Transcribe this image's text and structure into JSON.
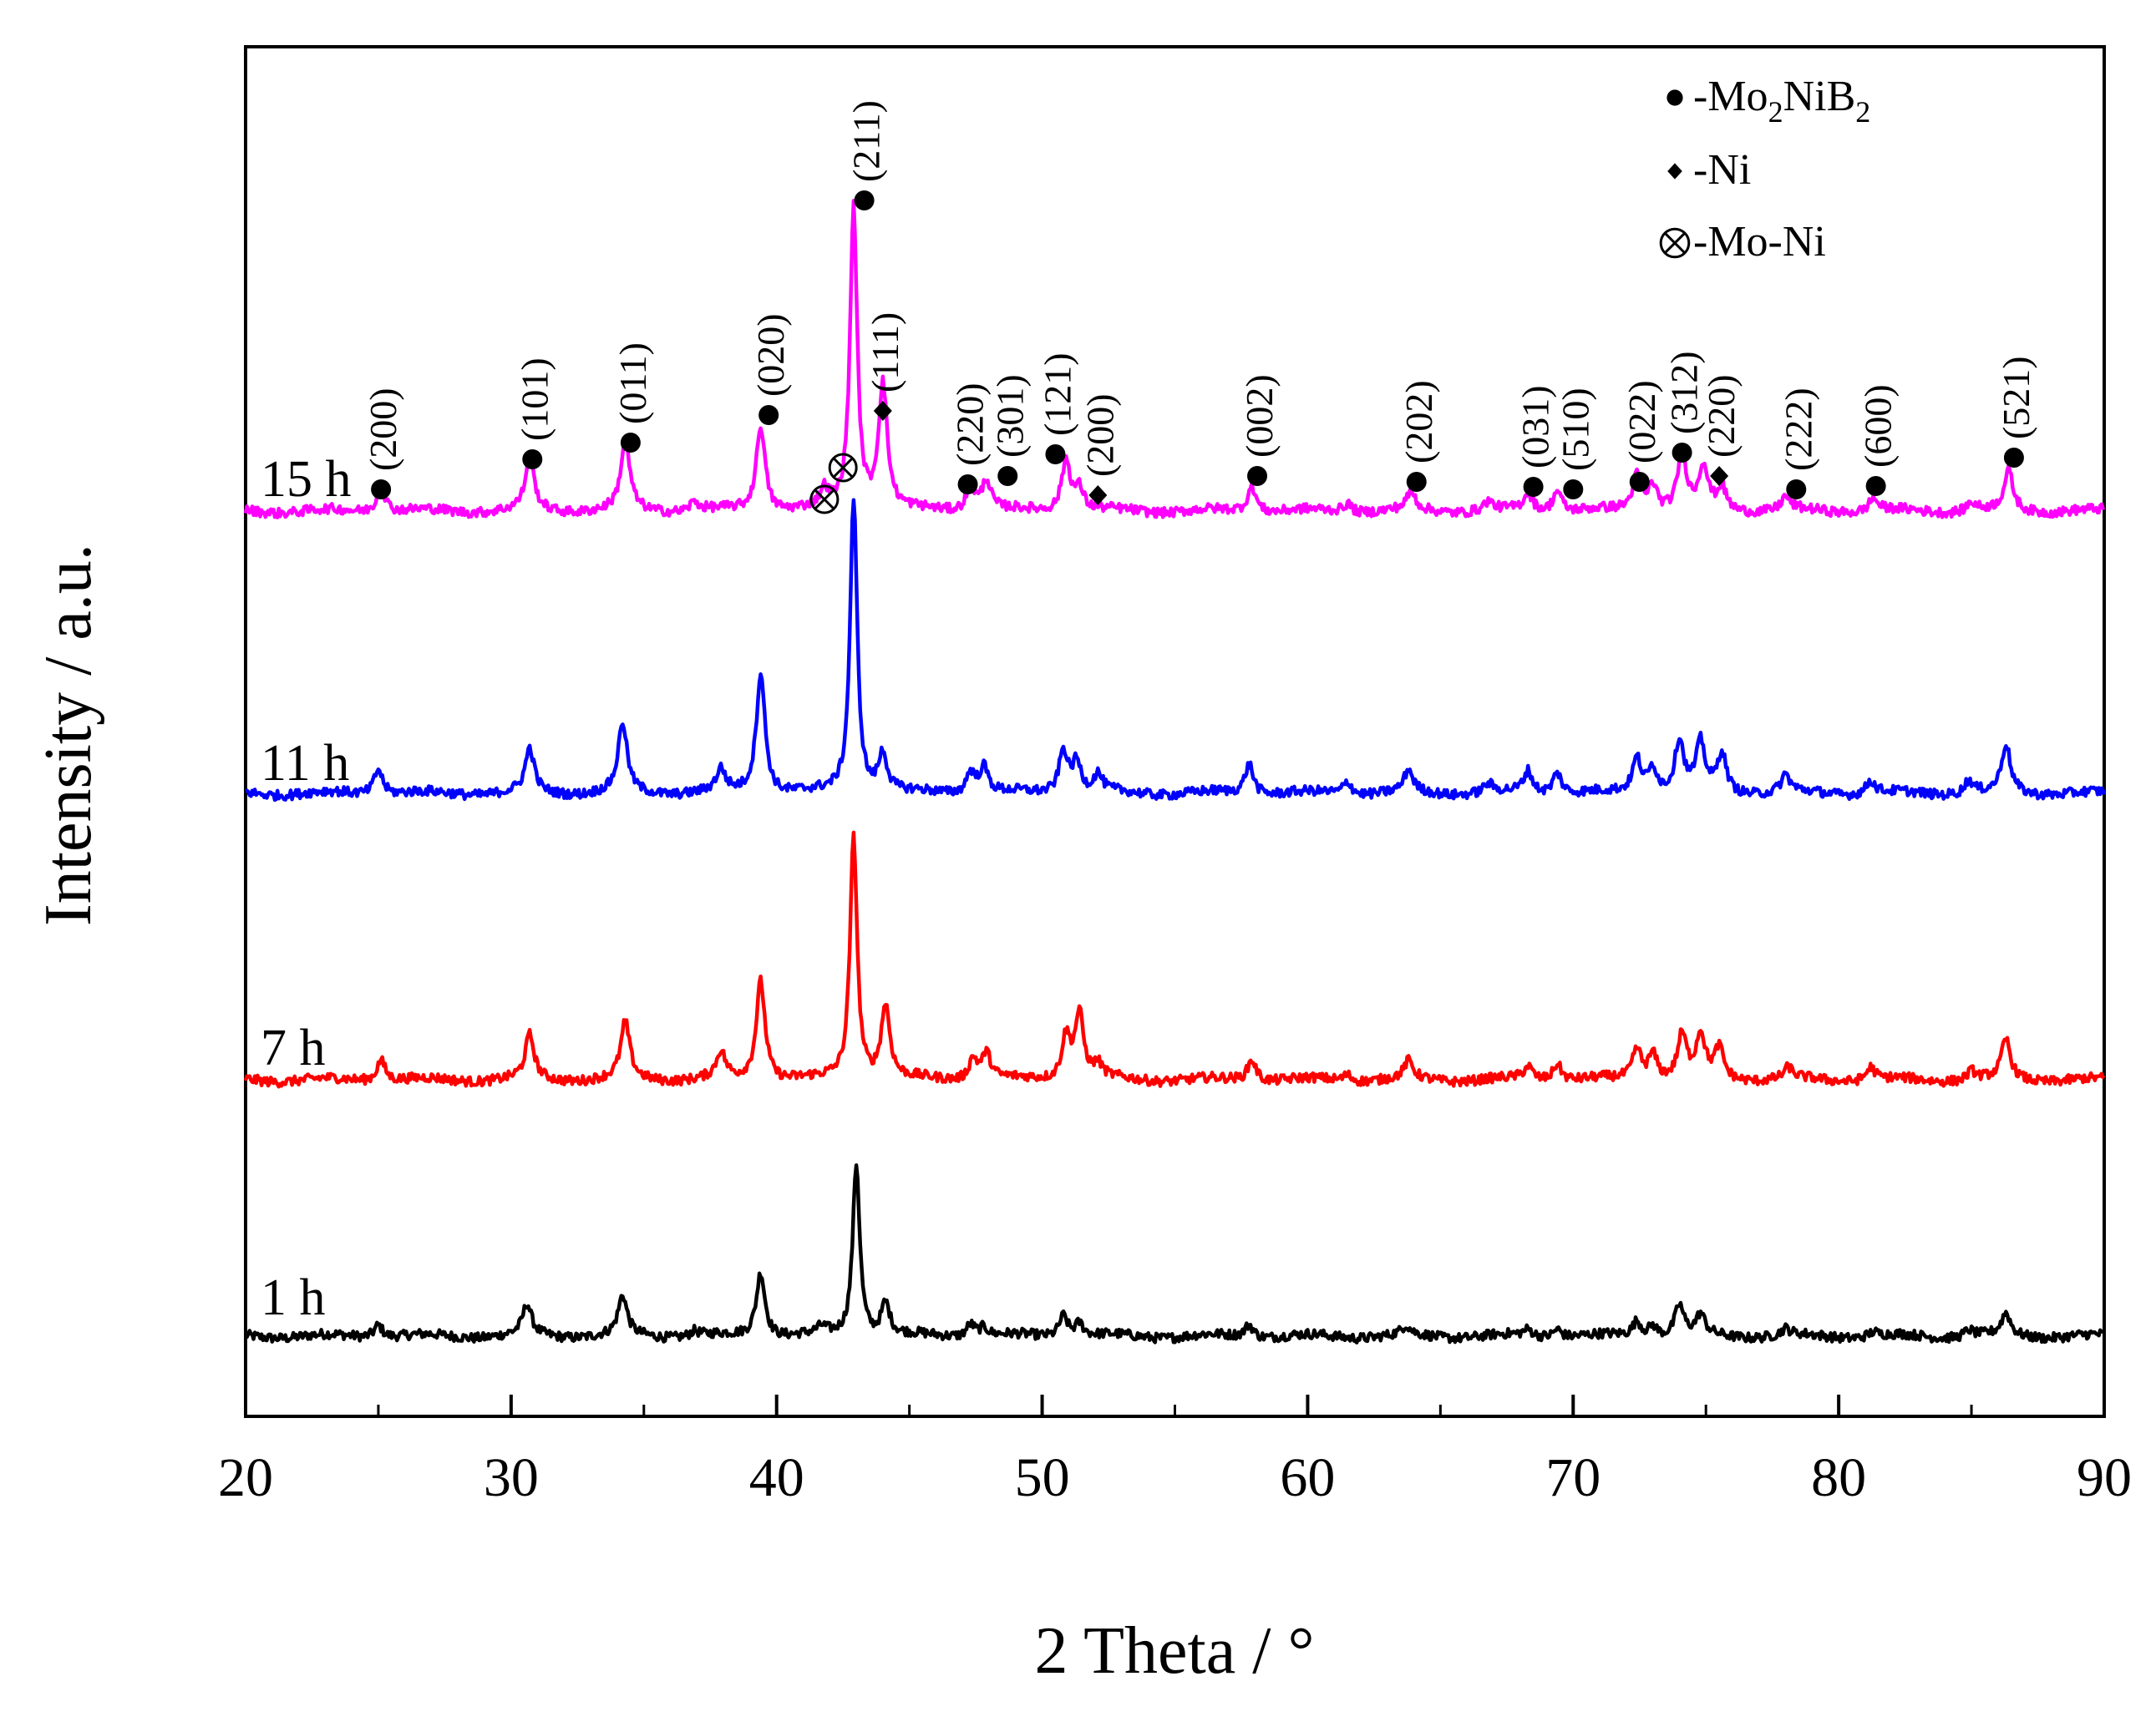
{
  "chart_data": {
    "type": "line",
    "title": "",
    "xlabel": "2 Theta / °",
    "ylabel": "Intensity / a.u.",
    "xlim": [
      20,
      90
    ],
    "xticks": [
      20,
      30,
      40,
      50,
      60,
      70,
      80,
      90
    ],
    "yticks_shown": false,
    "series": [
      {
        "name": "1 h",
        "color": "#000000",
        "baseline": 0.0,
        "peaks": [
          [
            25.0,
            0.3
          ],
          [
            30.6,
            0.7
          ],
          [
            34.2,
            0.9
          ],
          [
            36.9,
            0.12
          ],
          [
            39.4,
            1.5
          ],
          [
            41.7,
            0.15
          ],
          [
            43.0,
            4.0
          ],
          [
            44.1,
            0.75
          ],
          [
            47.3,
            0.3
          ],
          [
            47.8,
            0.2
          ],
          [
            50.8,
            0.5
          ],
          [
            51.4,
            0.3
          ],
          [
            57.8,
            0.3
          ],
          [
            63.7,
            0.2
          ],
          [
            68.3,
            0.15
          ],
          [
            69.4,
            0.2
          ],
          [
            72.4,
            0.35
          ],
          [
            73.0,
            0.25
          ],
          [
            74.0,
            0.7
          ],
          [
            74.8,
            0.45
          ],
          [
            78.0,
            0.15
          ],
          [
            81.3,
            0.1
          ],
          [
            84.9,
            0.15
          ],
          [
            86.3,
            0.5
          ]
        ]
      },
      {
        "name": "7 h",
        "color": "#ff0000",
        "baseline": 5.9,
        "peaks": [
          [
            25.1,
            0.5
          ],
          [
            30.7,
            1.0
          ],
          [
            34.3,
            1.3
          ],
          [
            37.9,
            0.6
          ],
          [
            39.4,
            2.3
          ],
          [
            42.9,
            5.6
          ],
          [
            44.1,
            1.7
          ],
          [
            47.4,
            0.5
          ],
          [
            47.9,
            0.6
          ],
          [
            50.9,
            1.0
          ],
          [
            51.4,
            1.5
          ],
          [
            52.1,
            0.3
          ],
          [
            57.9,
            0.5
          ],
          [
            61.5,
            0.15
          ],
          [
            63.8,
            0.4
          ],
          [
            68.3,
            0.3
          ],
          [
            69.4,
            0.4
          ],
          [
            72.4,
            0.7
          ],
          [
            73.0,
            0.6
          ],
          [
            74.1,
            1.0
          ],
          [
            74.8,
            1.0
          ],
          [
            75.5,
            0.7
          ],
          [
            78.1,
            0.25
          ],
          [
            81.2,
            0.3
          ],
          [
            85.0,
            0.2
          ],
          [
            86.3,
            0.9
          ]
        ]
      },
      {
        "name": "11 h",
        "color": "#0000ff",
        "baseline": 12.5,
        "peaks": [
          [
            25.0,
            0.6
          ],
          [
            30.7,
            1.0
          ],
          [
            34.2,
            1.6
          ],
          [
            37.9,
            0.5
          ],
          [
            39.4,
            2.8
          ],
          [
            42.9,
            6.8
          ],
          [
            44.0,
            0.9
          ],
          [
            47.3,
            0.5
          ],
          [
            47.8,
            0.6
          ],
          [
            50.8,
            1.0
          ],
          [
            51.3,
            0.7
          ],
          [
            52.1,
            0.4
          ],
          [
            57.8,
            0.7
          ],
          [
            61.5,
            0.3
          ],
          [
            63.8,
            0.5
          ],
          [
            66.8,
            0.2
          ],
          [
            68.3,
            0.5
          ],
          [
            69.4,
            0.5
          ],
          [
            72.4,
            0.8
          ],
          [
            73.0,
            0.6
          ],
          [
            74.0,
            1.2
          ],
          [
            74.8,
            1.1
          ],
          [
            75.6,
            0.9
          ],
          [
            78.0,
            0.4
          ],
          [
            81.2,
            0.3
          ],
          [
            84.9,
            0.3
          ],
          [
            86.3,
            1.1
          ]
        ]
      },
      {
        "name": "15 h",
        "color": "#ff00ff",
        "baseline": 19.0,
        "peaks": [
          [
            25.1,
            0.6
          ],
          [
            30.7,
            1.2
          ],
          [
            34.3,
            1.6
          ],
          [
            36.9,
            0.2
          ],
          [
            39.4,
            2.0
          ],
          [
            41.8,
            0.4
          ],
          [
            42.9,
            7.0
          ],
          [
            44.0,
            2.9
          ],
          [
            47.3,
            0.6
          ],
          [
            47.9,
            0.7
          ],
          [
            50.9,
            1.2
          ],
          [
            51.4,
            0.5
          ],
          [
            57.9,
            0.6
          ],
          [
            61.5,
            0.2
          ],
          [
            63.9,
            0.4
          ],
          [
            66.8,
            0.2
          ],
          [
            68.3,
            0.4
          ],
          [
            69.4,
            0.5
          ],
          [
            72.4,
            0.8
          ],
          [
            73.0,
            0.6
          ],
          [
            74.1,
            1.3
          ],
          [
            74.9,
            1.0
          ],
          [
            75.6,
            0.5
          ],
          [
            78.0,
            0.3
          ],
          [
            81.3,
            0.3
          ],
          [
            85.0,
            0.2
          ],
          [
            86.4,
            0.9
          ]
        ]
      }
    ],
    "legend": [
      {
        "symbol": "filled-circle",
        "prefix": "-Mo",
        "sub1": "2",
        "mid": "NiB",
        "sub2": "2"
      },
      {
        "symbol": "diamond",
        "text": "-Ni"
      },
      {
        "symbol": "circled-times",
        "text": "-Mo-Ni"
      }
    ],
    "peak_annotations": [
      {
        "x": 25.1,
        "label": "(200)",
        "symbol": "filled-circle"
      },
      {
        "x": 30.8,
        "label": "(101)",
        "symbol": "filled-circle"
      },
      {
        "x": 34.5,
        "label": "(011)",
        "symbol": "filled-circle"
      },
      {
        "x": 39.7,
        "label": "(020)",
        "symbol": "filled-circle"
      },
      {
        "x": 43.3,
        "label": "(211)",
        "symbol": "filled-circle"
      },
      {
        "x": 44.0,
        "label": "(111)",
        "symbol": "diamond"
      },
      {
        "x": 47.2,
        "label": "(220)",
        "symbol": "filled-circle"
      },
      {
        "x": 48.7,
        "label": "(301)",
        "symbol": "filled-circle"
      },
      {
        "x": 50.5,
        "label": "(121)",
        "symbol": "filled-circle"
      },
      {
        "x": 52.1,
        "label": "(200)",
        "symbol": "diamond"
      },
      {
        "x": 58.1,
        "label": "(002)",
        "symbol": "filled-circle"
      },
      {
        "x": 64.1,
        "label": "(202)",
        "symbol": "filled-circle"
      },
      {
        "x": 68.5,
        "label": "(031)",
        "symbol": "filled-circle"
      },
      {
        "x": 70.0,
        "label": "(510)",
        "symbol": "filled-circle"
      },
      {
        "x": 72.5,
        "label": "(022)",
        "symbol": "filled-circle"
      },
      {
        "x": 74.1,
        "label": "(312)",
        "symbol": "filled-circle"
      },
      {
        "x": 75.5,
        "label": "(220)",
        "symbol": "diamond"
      },
      {
        "x": 78.4,
        "label": "(222)",
        "symbol": "filled-circle"
      },
      {
        "x": 81.4,
        "label": "(600)",
        "symbol": "filled-circle"
      },
      {
        "x": 86.6,
        "label": "(521)",
        "symbol": "filled-circle"
      }
    ],
    "mo_ni_markers": [
      {
        "x": 41.8,
        "symbol": "circled-times"
      },
      {
        "x": 42.5,
        "symbol": "circled-times"
      }
    ]
  }
}
